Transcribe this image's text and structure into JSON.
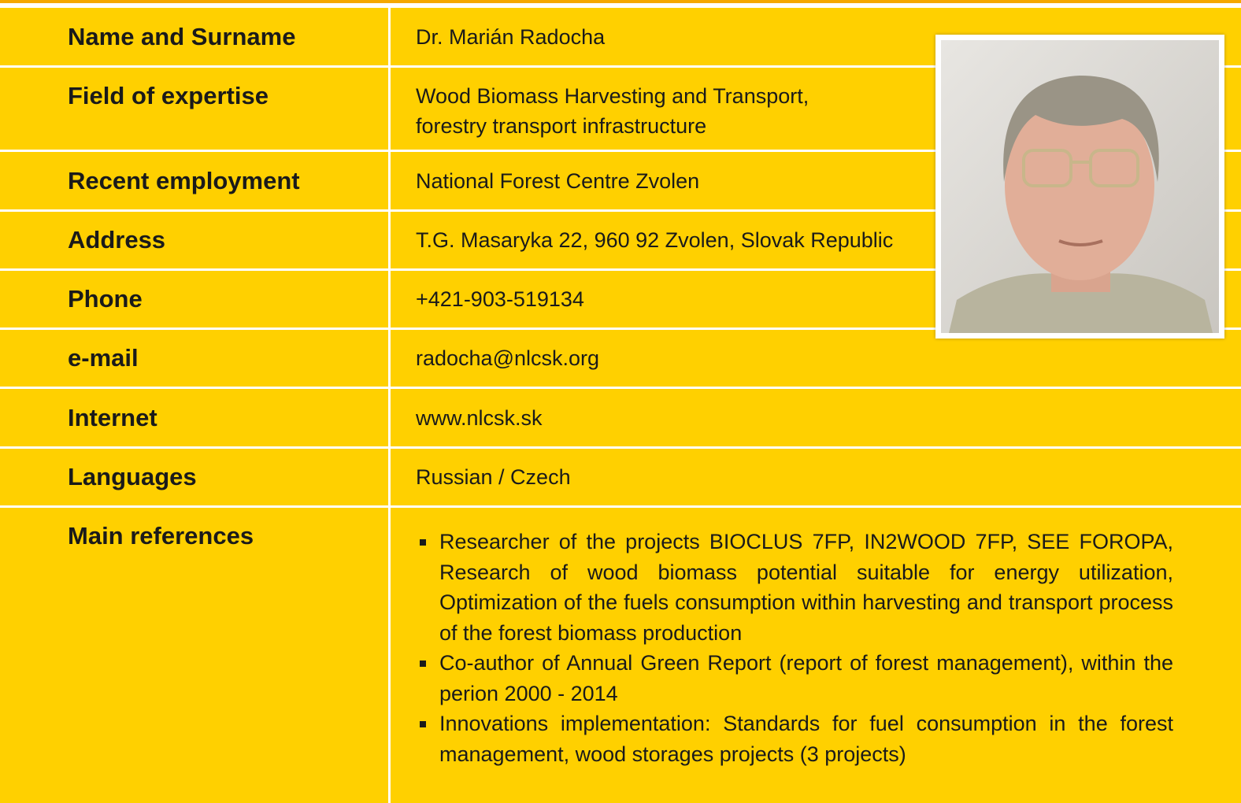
{
  "rows": [
    {
      "label": "Name and Surname",
      "value": [
        "Dr. Marián Radocha"
      ]
    },
    {
      "label": "Field of expertise",
      "value": [
        "Wood Biomass Harvesting and Transport,",
        "forestry transport infrastructure"
      ]
    },
    {
      "label": "Recent employment",
      "value": [
        "National Forest Centre Zvolen"
      ]
    },
    {
      "label": "Address",
      "value": [
        "T.G. Masaryka 22, 960 92 Zvolen, Slovak Republic"
      ]
    },
    {
      "label": "Phone",
      "value": [
        "+421-903-519134"
      ]
    },
    {
      "label": "e-mail",
      "value": [
        "radocha@nlcsk.org"
      ]
    },
    {
      "label": "Internet",
      "value": [
        "www.nlcsk.sk"
      ]
    },
    {
      "label": "Languages",
      "value": [
        "Russian / Czech"
      ]
    }
  ],
  "main_references": {
    "label": "Main references",
    "items": [
      "Researcher of the projects BIOCLUS 7FP, IN2WOOD 7FP, SEE FOROPA, Research of wood biomass potential suitable for energy utilization, Optimization of the fuels consumption within harvesting and transport process of the forest biomass production",
      "Co-author of Annual Green Report (report of forest management), within the perion 2000 - 2014",
      "Innovations implementation: Standards for fuel consumption in the forest management, wood storages projects (3 projects)"
    ]
  }
}
